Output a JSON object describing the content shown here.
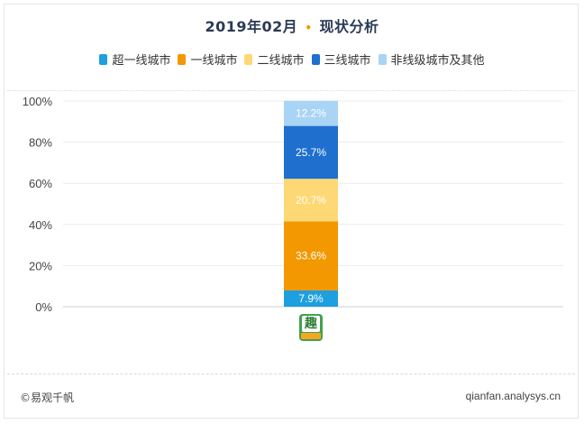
{
  "title": {
    "main": "2019年02月",
    "separator": "•",
    "sub": "现状分析"
  },
  "legend": [
    {
      "label": "超一线城市",
      "color": "#1e9fe0"
    },
    {
      "label": "一线城市",
      "color": "#f39800"
    },
    {
      "label": "二线城市",
      "color": "#fdd874"
    },
    {
      "label": "三线城市",
      "color": "#1f6fcf"
    },
    {
      "label": "非线级城市及其他",
      "color": "#a9d4f5"
    }
  ],
  "app": {
    "glyph": "趣",
    "icon_name": "app-logo-icon"
  },
  "footer": {
    "left": "©易观千帆",
    "right": "qianfan.analysys.cn"
  },
  "chart_data": {
    "type": "bar",
    "stacked": true,
    "categories": [
      ""
    ],
    "series": [
      {
        "name": "超一线城市",
        "values": [
          7.9
        ],
        "label": "7.9%",
        "color": "#1e9fe0"
      },
      {
        "name": "一线城市",
        "values": [
          33.6
        ],
        "label": "33.6%",
        "color": "#f39800"
      },
      {
        "name": "二线城市",
        "values": [
          20.7
        ],
        "label": "20.7%",
        "color": "#fdd874"
      },
      {
        "name": "三线城市",
        "values": [
          25.7
        ],
        "label": "25.7%",
        "color": "#1f6fcf"
      },
      {
        "name": "非线级城市及其他",
        "values": [
          12.2
        ],
        "label": "12.2%",
        "color": "#a9d4f5"
      }
    ],
    "ylim": [
      0,
      100
    ],
    "yticks": [
      "0%",
      "20%",
      "40%",
      "60%",
      "80%",
      "100%"
    ],
    "grid": true,
    "legend_position": "top"
  }
}
